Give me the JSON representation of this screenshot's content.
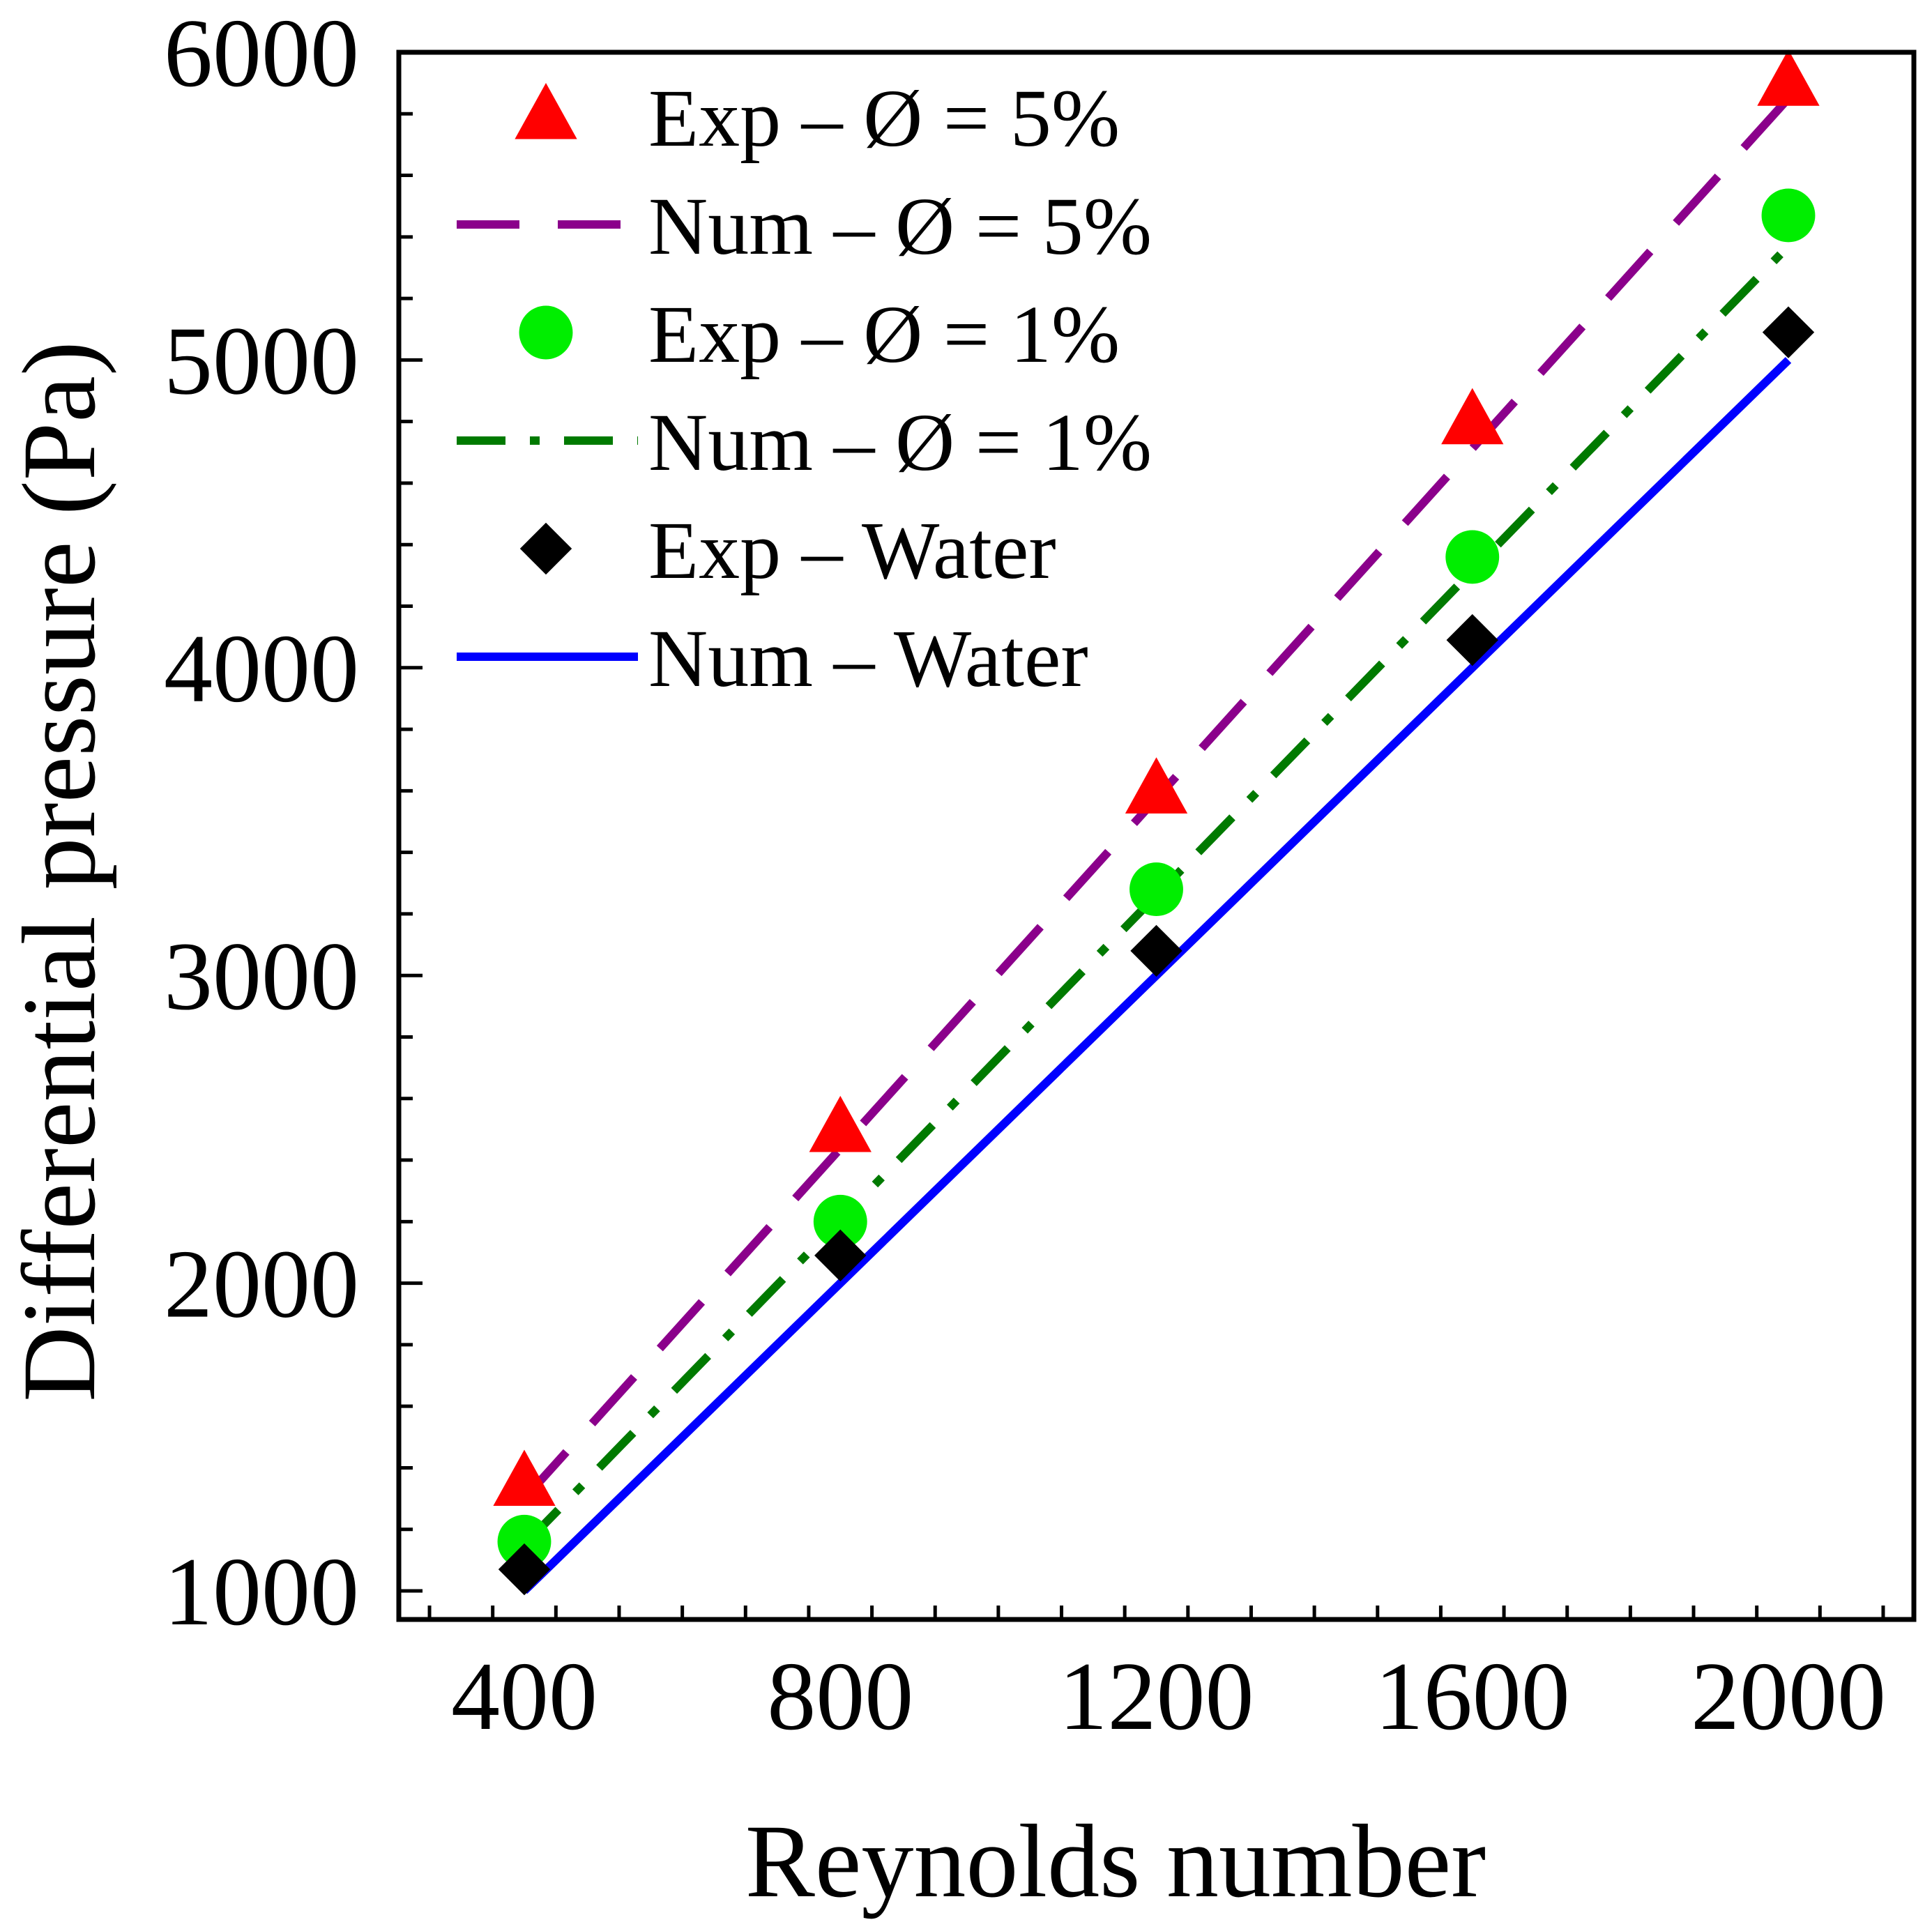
{
  "chart_data": {
    "type": "line",
    "title": "",
    "xlabel": "Reynolds number",
    "ylabel": "Differential pressure (Pa)",
    "xlim": [
      200,
      2200
    ],
    "ylim": [
      900,
      6000
    ],
    "xticks": [
      400,
      800,
      1200,
      1600,
      2000
    ],
    "xtick_labels": [
      "400",
      "800",
      "1200",
      "1600",
      "2000"
    ],
    "yticks": [
      1000,
      2000,
      3000,
      4000,
      5000,
      6000
    ],
    "ytick_labels": [
      "1000",
      "2000",
      "3000",
      "4000",
      "5000",
      "6000"
    ],
    "x_minor_step": 80,
    "y_minor_step": 200,
    "legend_position": "top-left",
    "series": [
      {
        "name": "Exp – Ø = 5%",
        "kind": "marker",
        "marker": "triangle",
        "color": "#ff0000",
        "x": [
          400,
          800,
          1200,
          1600,
          2000
        ],
        "y": [
          1350,
          2500,
          3600,
          4800,
          5900
        ]
      },
      {
        "name": "Num – Ø = 5%",
        "kind": "line",
        "dash": "dash",
        "color": "#8b008b",
        "x": [
          400,
          2000
        ],
        "y": [
          1300,
          5850
        ]
      },
      {
        "name": "Exp – Ø = 1%",
        "kind": "marker",
        "marker": "circle",
        "color": "#00ee00",
        "x": [
          400,
          800,
          1200,
          1600,
          2000
        ],
        "y": [
          1160,
          2200,
          3280,
          4360,
          5470
        ]
      },
      {
        "name": "Num – Ø = 1%",
        "kind": "line",
        "dash": "dashdot",
        "color": "#007a00",
        "x": [
          400,
          2000
        ],
        "y": [
          1150,
          5370
        ]
      },
      {
        "name": "Exp – Water",
        "kind": "marker",
        "marker": "diamond",
        "color": "#000000",
        "x": [
          400,
          800,
          1200,
          1600,
          2000
        ],
        "y": [
          1070,
          2090,
          3080,
          4090,
          5090
        ]
      },
      {
        "name": "Num – Water",
        "kind": "line",
        "dash": "solid",
        "color": "#0000ff",
        "x": [
          400,
          2000
        ],
        "y": [
          1000,
          5000
        ]
      }
    ]
  }
}
